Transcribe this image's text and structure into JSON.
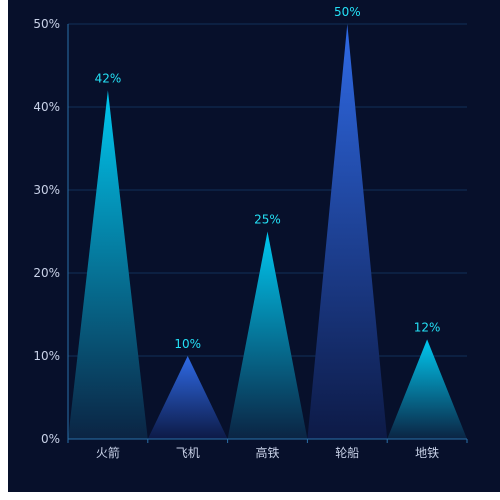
{
  "chart_data": {
    "type": "bar",
    "categories": [
      "火箭",
      "飞机",
      "高铁",
      "轮船",
      "地铁"
    ],
    "values": [
      42,
      10,
      25,
      50,
      12
    ],
    "data_labels": [
      "42%",
      "10%",
      "25%",
      "50%",
      "12%"
    ],
    "ylim": [
      0,
      50
    ],
    "y_ticks": [
      0,
      10,
      20,
      30,
      40,
      50
    ],
    "y_tick_labels": [
      "0%",
      "10%",
      "20%",
      "30%",
      "40%",
      "50%"
    ],
    "grid": true,
    "bar_shape": "triangle",
    "series": [
      {
        "values": [
          42,
          10,
          25,
          50,
          12
        ],
        "gradients": [
          "cyan",
          "blue",
          "cyan",
          "blue",
          "cyan"
        ]
      }
    ]
  },
  "colors": {
    "background": "#07102b",
    "grid": "#12305a",
    "axis": "#2a6fa8",
    "tick_text": "#c9d2e8",
    "data_label": "#24e0f5",
    "cyan_top": "#00c8f0",
    "cyan_bottom": "#0b2443",
    "blue_top": "#2f6ae6",
    "blue_bottom": "#0d1a46"
  }
}
